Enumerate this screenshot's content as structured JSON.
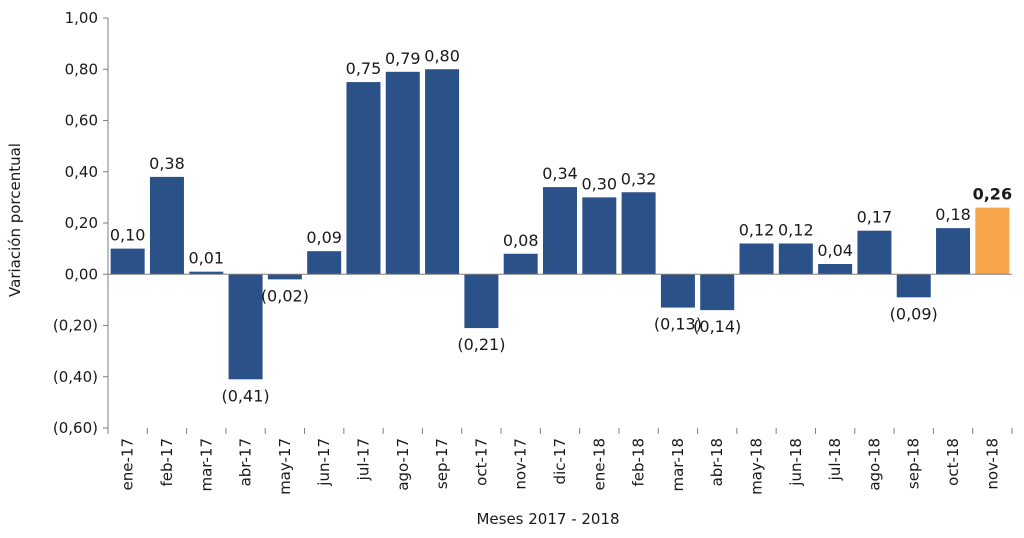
{
  "chart_data": {
    "type": "bar",
    "xlabel": "Meses 2017 - 2018",
    "ylabel": "Variación porcentual",
    "ylim": [
      -0.6,
      1.0
    ],
    "ytick_values": [
      1.0,
      0.8,
      0.6,
      0.4,
      0.2,
      0.0,
      -0.2,
      -0.4,
      -0.6
    ],
    "ytick_labels": [
      "1,00",
      "0,80",
      "0,60",
      "0,40",
      "0,20",
      "0,00",
      "(0,20)",
      "(0,40)",
      "(0,60)"
    ],
    "categories": [
      "ene-17",
      "feb-17",
      "mar-17",
      "abr-17",
      "may-17",
      "jun-17",
      "jul-17",
      "ago-17",
      "sep-17",
      "oct-17",
      "nov-17",
      "dic-17",
      "ene-18",
      "feb-18",
      "mar-18",
      "abr-18",
      "may-18",
      "jun-18",
      "jul-18",
      "ago-18",
      "sep-18",
      "oct-18",
      "nov-18"
    ],
    "values": [
      0.1,
      0.38,
      0.01,
      -0.41,
      -0.02,
      0.09,
      0.75,
      0.79,
      0.8,
      -0.21,
      0.08,
      0.34,
      0.3,
      0.32,
      -0.13,
      -0.14,
      0.12,
      0.12,
      0.04,
      0.17,
      -0.09,
      0.18,
      0.26
    ],
    "data_labels": [
      "0,10",
      "0,38",
      "0,01",
      "(0,41)",
      "(0,02)",
      "0,09",
      "0,75",
      "0,79",
      "0,80",
      "(0,21)",
      "0,08",
      "0,34",
      "0,30",
      "0,32",
      "(0,13)",
      "(0,14)",
      "0,12",
      "0,12",
      "0,04",
      "0,17",
      "(0,09)",
      "0,18",
      "0,26"
    ],
    "highlight_index": 22,
    "colors": {
      "bar": "#2b5189",
      "highlight": "#f7a54a",
      "axis": "#7f7f7f"
    },
    "grid": false,
    "legend": "none"
  }
}
